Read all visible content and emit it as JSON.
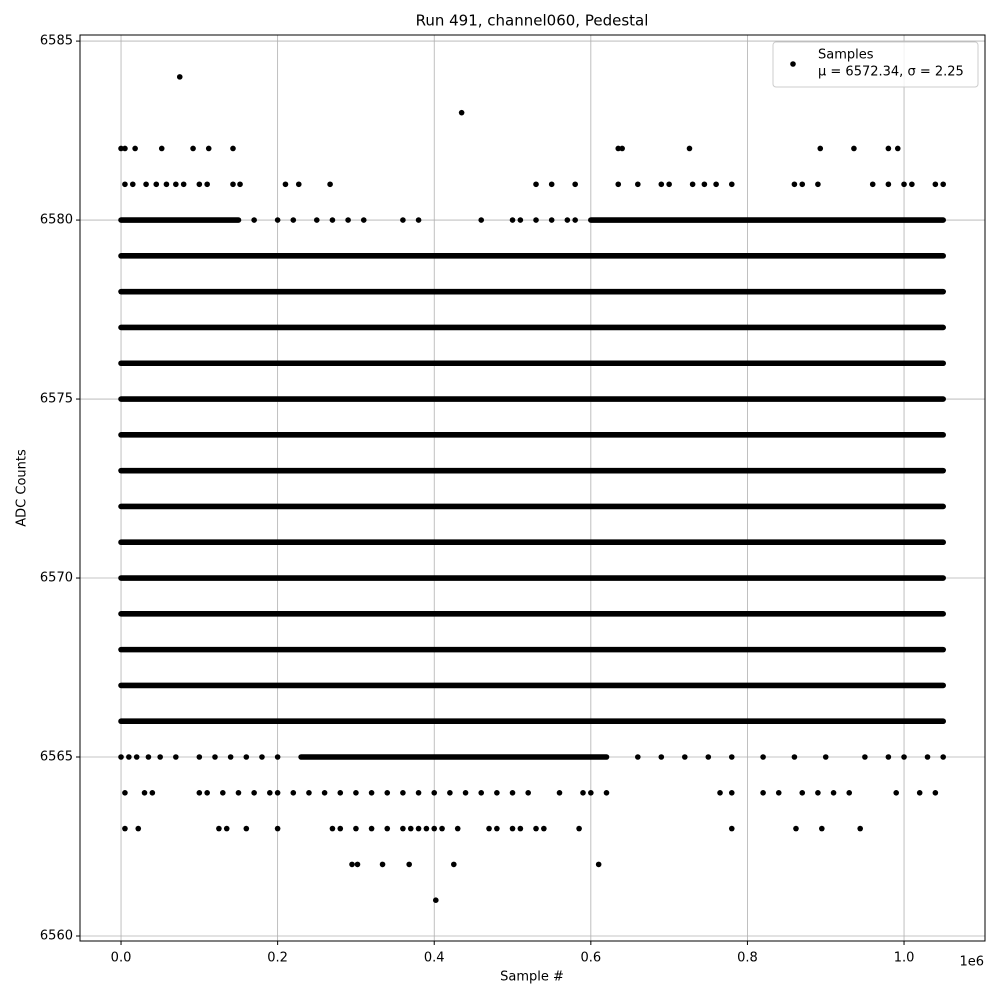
{
  "chart_data": {
    "type": "scatter",
    "title": "Run 491, channel060, Pedestal",
    "x_label": "Sample #",
    "y_label": "ADC Counts",
    "x_offset_label": "1e6",
    "xlim": [
      -52400,
      1103400
    ],
    "ylim": [
      6559.86,
      6585.17
    ],
    "xticks": [
      {
        "value": 0,
        "label": "0.0"
      },
      {
        "value": 200000,
        "label": "0.2"
      },
      {
        "value": 400000,
        "label": "0.4"
      },
      {
        "value": 600000,
        "label": "0.6"
      },
      {
        "value": 800000,
        "label": "0.8"
      },
      {
        "value": 1000000,
        "label": "1.0"
      }
    ],
    "yticks": [
      6560,
      6565,
      6570,
      6575,
      6580,
      6585
    ],
    "grid": true,
    "legend": "upper right",
    "series": [
      {
        "name": "Samples",
        "stats": "μ = 6572.34, σ = 2.25",
        "color": "#000000",
        "runs": [
          {
            "value": 6580,
            "x": [
              0,
              150000
            ]
          },
          {
            "value": 6580,
            "x": [
              600000,
              1050000
            ]
          },
          {
            "value": 6579,
            "x": [
              0,
              1050000
            ]
          },
          {
            "value": 6578,
            "x": [
              0,
              1050000
            ]
          },
          {
            "value": 6577,
            "x": [
              0,
              1050000
            ]
          },
          {
            "value": 6576,
            "x": [
              0,
              1050000
            ]
          },
          {
            "value": 6575,
            "x": [
              0,
              1050000
            ]
          },
          {
            "value": 6574,
            "x": [
              0,
              1050000
            ]
          },
          {
            "value": 6573,
            "x": [
              0,
              1050000
            ]
          },
          {
            "value": 6572,
            "x": [
              0,
              1050000
            ]
          },
          {
            "value": 6571,
            "x": [
              0,
              1050000
            ]
          },
          {
            "value": 6570,
            "x": [
              0,
              1050000
            ]
          },
          {
            "value": 6569,
            "x": [
              0,
              1050000
            ]
          },
          {
            "value": 6568,
            "x": [
              0,
              1050000
            ]
          },
          {
            "value": 6567,
            "x": [
              0,
              1050000
            ]
          },
          {
            "value": 6566,
            "x": [
              0,
              1050000
            ]
          },
          {
            "value": 6565,
            "x": [
              230000,
              620000
            ]
          }
        ],
        "rows": [
          {
            "value": 6584,
            "x": [
              75000
            ]
          },
          {
            "value": 6583,
            "x": [
              435000
            ]
          },
          {
            "value": 6582,
            "x": [
              0,
              5000,
              18000,
              52000,
              92000,
              112000,
              143000,
              635000,
              640000,
              726000,
              893000,
              936000,
              980000,
              992000
            ]
          },
          {
            "value": 6581,
            "x": [
              5000,
              15000,
              32000,
              45000,
              58000,
              70000,
              80000,
              100000,
              110000,
              143000,
              152000,
              210000,
              227000,
              267000,
              530000,
              550000,
              580000,
              635000,
              660000,
              690000,
              700000,
              730000,
              745000,
              760000,
              780000,
              860000,
              870000,
              890000,
              960000,
              980000,
              1000000,
              1010000,
              1040000,
              1050000
            ]
          },
          {
            "value": 6580,
            "x": [
              170000,
              200000,
              220000,
              250000,
              270000,
              290000,
              310000,
              360000,
              380000,
              460000,
              500000,
              510000,
              530000,
              550000,
              570000,
              580000
            ]
          },
          {
            "value": 6565,
            "x": [
              0,
              10000,
              20000,
              35000,
              50000,
              70000,
              100000,
              120000,
              140000,
              160000,
              180000,
              200000,
              660000,
              690000,
              720000,
              750000,
              780000,
              820000,
              860000,
              900000,
              950000,
              980000,
              1000000,
              1030000,
              1050000
            ]
          },
          {
            "value": 6564,
            "x": [
              5000,
              30000,
              40000,
              100000,
              110000,
              130000,
              150000,
              170000,
              190000,
              200000,
              220000,
              240000,
              260000,
              280000,
              300000,
              320000,
              340000,
              360000,
              380000,
              400000,
              420000,
              440000,
              460000,
              480000,
              500000,
              520000,
              560000,
              590000,
              600000,
              620000,
              765000,
              780000,
              820000,
              840000,
              870000,
              890000,
              910000,
              930000,
              990000,
              1020000,
              1040000
            ]
          },
          {
            "value": 6563,
            "x": [
              5000,
              22000,
              125000,
              135000,
              160000,
              200000,
              270000,
              280000,
              300000,
              320000,
              340000,
              360000,
              370000,
              380000,
              390000,
              400000,
              410000,
              430000,
              470000,
              480000,
              500000,
              510000,
              530000,
              540000,
              585000,
              780000,
              862000,
              895000,
              944000
            ]
          },
          {
            "value": 6562,
            "x": [
              295000,
              302000,
              334000,
              368000,
              425000,
              610000
            ]
          },
          {
            "value": 6561,
            "x": [
              402000
            ]
          }
        ]
      }
    ]
  }
}
